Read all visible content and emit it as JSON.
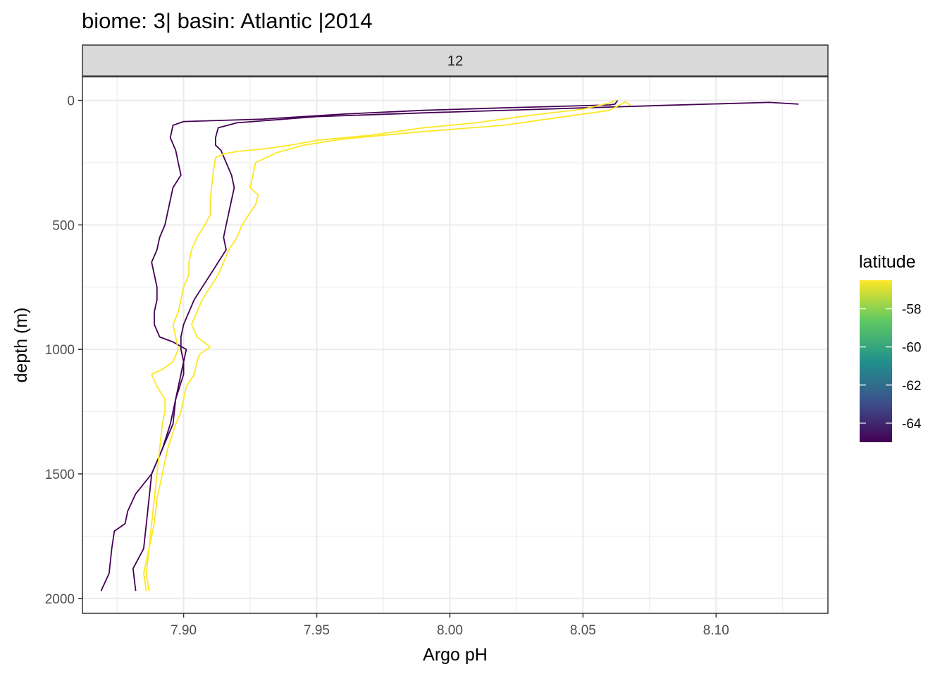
{
  "chart_data": {
    "type": "line",
    "title": "biome: 3| basin: Atlantic |2014",
    "facet_label": "12",
    "xlabel": "Argo pH",
    "ylabel": "depth (m)",
    "xlim": [
      7.862,
      8.142
    ],
    "ylim": [
      -95,
      2060
    ],
    "y_reversed": true,
    "x_ticks": [
      7.9,
      7.95,
      8.0,
      8.05,
      8.1
    ],
    "x_tick_labels": [
      "7.90",
      "7.95",
      "8.00",
      "8.05",
      "8.10"
    ],
    "y_ticks": [
      0,
      500,
      1000,
      1500,
      2000
    ],
    "y_tick_labels": [
      "0",
      "500",
      "1000",
      "1500",
      "2000"
    ],
    "grid": true,
    "legend": {
      "title": "latitude",
      "placement": "right",
      "type": "colorbar",
      "range": [
        -65,
        -56.5
      ],
      "ticks": [
        -58,
        -60,
        -62,
        -64
      ],
      "tick_labels": [
        "-58",
        "-60",
        "-62",
        "-64"
      ],
      "colors": [
        "#440154",
        "#3b528b",
        "#21918c",
        "#5ec962",
        "#fde725"
      ]
    },
    "series": [
      {
        "latitude": -64.8,
        "color": "#440154",
        "points": [
          [
            8.063,
            0
          ],
          [
            8.062,
            15
          ],
          [
            8.06,
            18
          ],
          [
            8.02,
            30
          ],
          [
            7.99,
            40
          ],
          [
            7.96,
            55
          ],
          [
            7.93,
            75
          ],
          [
            7.9,
            85
          ],
          [
            7.896,
            100
          ],
          [
            7.895,
            150
          ],
          [
            7.897,
            200
          ],
          [
            7.898,
            250
          ],
          [
            7.899,
            300
          ],
          [
            7.896,
            350
          ],
          [
            7.895,
            400
          ],
          [
            7.894,
            450
          ],
          [
            7.893,
            500
          ],
          [
            7.891,
            550
          ],
          [
            7.89,
            600
          ],
          [
            7.888,
            650
          ],
          [
            7.889,
            700
          ],
          [
            7.89,
            750
          ],
          [
            7.89,
            800
          ],
          [
            7.889,
            850
          ],
          [
            7.889,
            900
          ],
          [
            7.891,
            950
          ],
          [
            7.896,
            970
          ],
          [
            7.901,
            1000
          ],
          [
            7.899,
            1100
          ],
          [
            7.897,
            1200
          ],
          [
            7.895,
            1300
          ],
          [
            7.892,
            1400
          ],
          [
            7.888,
            1500
          ],
          [
            7.882,
            1580
          ],
          [
            7.879,
            1650
          ],
          [
            7.878,
            1700
          ],
          [
            7.874,
            1730
          ],
          [
            7.873,
            1800
          ],
          [
            7.872,
            1900
          ],
          [
            7.869,
            1970
          ]
        ]
      },
      {
        "latitude": -64.5,
        "color": "#440154",
        "points": [
          [
            8.131,
            15
          ],
          [
            8.12,
            8
          ],
          [
            8.08,
            20
          ],
          [
            8.05,
            30
          ],
          [
            7.99,
            50
          ],
          [
            7.95,
            65
          ],
          [
            7.92,
            90
          ],
          [
            7.913,
            110
          ],
          [
            7.912,
            150
          ],
          [
            7.912,
            180
          ],
          [
            7.914,
            200
          ],
          [
            7.916,
            250
          ],
          [
            7.918,
            300
          ],
          [
            7.919,
            350
          ],
          [
            7.918,
            400
          ],
          [
            7.917,
            450
          ],
          [
            7.916,
            500
          ],
          [
            7.915,
            550
          ],
          [
            7.916,
            600
          ],
          [
            7.913,
            650
          ],
          [
            7.91,
            700
          ],
          [
            7.907,
            750
          ],
          [
            7.904,
            800
          ],
          [
            7.902,
            850
          ],
          [
            7.9,
            900
          ],
          [
            7.899,
            950
          ],
          [
            7.899,
            1000
          ],
          [
            7.9,
            1050
          ],
          [
            7.9,
            1100
          ],
          [
            7.897,
            1200
          ],
          [
            7.896,
            1300
          ],
          [
            7.894,
            1350
          ],
          [
            7.892,
            1400
          ],
          [
            7.888,
            1500
          ],
          [
            7.887,
            1600
          ],
          [
            7.886,
            1700
          ],
          [
            7.885,
            1800
          ],
          [
            7.881,
            1880
          ],
          [
            7.882,
            1970
          ]
        ]
      },
      {
        "latitude": -56.8,
        "color": "#fde725",
        "points": [
          [
            8.062,
            0
          ],
          [
            8.06,
            10
          ],
          [
            8.05,
            35
          ],
          [
            8.03,
            60
          ],
          [
            8.01,
            90
          ],
          [
            7.99,
            110
          ],
          [
            7.97,
            140
          ],
          [
            7.95,
            160
          ],
          [
            7.94,
            180
          ],
          [
            7.93,
            195
          ],
          [
            7.92,
            205
          ],
          [
            7.915,
            215
          ],
          [
            7.912,
            230
          ],
          [
            7.911,
            300
          ],
          [
            7.91,
            400
          ],
          [
            7.91,
            460
          ],
          [
            7.908,
            500
          ],
          [
            7.905,
            550
          ],
          [
            7.903,
            600
          ],
          [
            7.902,
            650
          ],
          [
            7.902,
            700
          ],
          [
            7.9,
            750
          ],
          [
            7.899,
            800
          ],
          [
            7.898,
            850
          ],
          [
            7.896,
            900
          ],
          [
            7.897,
            950
          ],
          [
            7.898,
            1000
          ],
          [
            7.896,
            1050
          ],
          [
            7.892,
            1080
          ],
          [
            7.888,
            1100
          ],
          [
            7.89,
            1150
          ],
          [
            7.893,
            1200
          ],
          [
            7.893,
            1250
          ],
          [
            7.892,
            1300
          ],
          [
            7.891,
            1400
          ],
          [
            7.89,
            1500
          ],
          [
            7.889,
            1600
          ],
          [
            7.888,
            1700
          ],
          [
            7.887,
            1800
          ],
          [
            7.885,
            1900
          ],
          [
            7.886,
            1970
          ]
        ]
      },
      {
        "latitude": -56.6,
        "color": "#fde725",
        "points": [
          [
            8.068,
            20
          ],
          [
            8.066,
            5
          ],
          [
            8.06,
            40
          ],
          [
            8.04,
            70
          ],
          [
            8.02,
            100
          ],
          [
            7.99,
            125
          ],
          [
            7.96,
            155
          ],
          [
            7.945,
            180
          ],
          [
            7.935,
            210
          ],
          [
            7.927,
            250
          ],
          [
            7.926,
            300
          ],
          [
            7.925,
            350
          ],
          [
            7.928,
            380
          ],
          [
            7.927,
            420
          ],
          [
            7.925,
            450
          ],
          [
            7.922,
            500
          ],
          [
            7.92,
            550
          ],
          [
            7.917,
            600
          ],
          [
            7.915,
            650
          ],
          [
            7.913,
            700
          ],
          [
            7.91,
            750
          ],
          [
            7.907,
            800
          ],
          [
            7.905,
            850
          ],
          [
            7.903,
            900
          ],
          [
            7.905,
            950
          ],
          [
            7.91,
            990
          ],
          [
            7.906,
            1020
          ],
          [
            7.905,
            1050
          ],
          [
            7.904,
            1100
          ],
          [
            7.901,
            1150
          ],
          [
            7.9,
            1200
          ],
          [
            7.899,
            1250
          ],
          [
            7.897,
            1300
          ],
          [
            7.894,
            1400
          ],
          [
            7.892,
            1500
          ],
          [
            7.89,
            1600
          ],
          [
            7.889,
            1700
          ],
          [
            7.887,
            1800
          ],
          [
            7.886,
            1900
          ],
          [
            7.887,
            1970
          ]
        ]
      }
    ]
  }
}
